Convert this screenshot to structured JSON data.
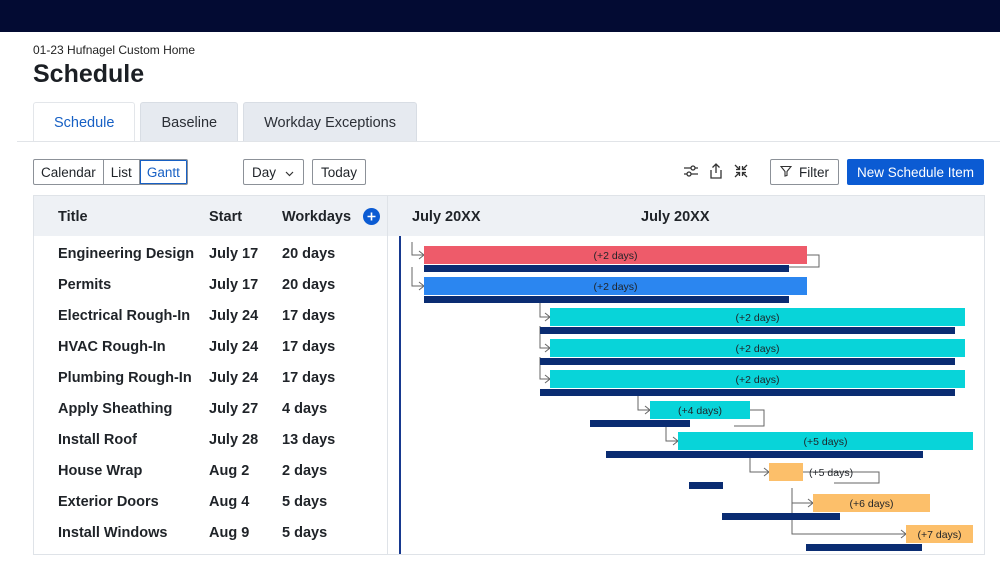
{
  "project": {
    "name": "01-23 Hufnagel Custom Home",
    "title": "Schedule"
  },
  "tabs": [
    {
      "label": "Schedule",
      "active": true
    },
    {
      "label": "Baseline",
      "active": false
    },
    {
      "label": "Workday Exceptions",
      "active": false
    }
  ],
  "toolbar": {
    "views": [
      {
        "label": "Calendar",
        "active": false
      },
      {
        "label": "List",
        "active": false
      },
      {
        "label": "Gantt",
        "active": true
      }
    ],
    "scale_select": {
      "value": "Day",
      "icon": "chevron-down-icon"
    },
    "today_label": "Today",
    "icons": [
      "settings-sliders-icon",
      "share-icon",
      "collapse-icon"
    ],
    "filter_label": "Filter",
    "new_item_label": "New Schedule Item"
  },
  "table": {
    "headers": {
      "title": "Title",
      "start": "Start",
      "workdays": "Workdays"
    },
    "rows": [
      {
        "title": "Engineering Design",
        "start": "July 17",
        "workdays": "20 days"
      },
      {
        "title": "Permits",
        "start": "July 17",
        "workdays": "20 days"
      },
      {
        "title": "Electrical Rough-In",
        "start": "July 24",
        "workdays": "17 days"
      },
      {
        "title": "HVAC Rough-In",
        "start": "July 24",
        "workdays": "17 days"
      },
      {
        "title": "Plumbing Rough-In",
        "start": "July 24",
        "workdays": "17 days"
      },
      {
        "title": "Apply Sheathing",
        "start": "July 27",
        "workdays": "4 days"
      },
      {
        "title": "Install Roof",
        "start": "July 28",
        "workdays": "13 days"
      },
      {
        "title": "House Wrap",
        "start": "Aug 2",
        "workdays": "2 days"
      },
      {
        "title": "Exterior Doors",
        "start": "Aug 4",
        "workdays": "5 days"
      },
      {
        "title": "Install Windows",
        "start": "Aug 9",
        "workdays": "5 days"
      }
    ]
  },
  "gantt": {
    "month_labels": [
      "July 20XX",
      "July 20XX"
    ],
    "colors": {
      "critical": "#ee5b6a",
      "primary": "#2b86f0",
      "standard": "#08d4d9",
      "late": "#fcbf6a",
      "baseline": "#0a2c72",
      "today": "#17398f",
      "connector": "#666666"
    },
    "bars": [
      {
        "task": "Engineering Design",
        "variance": "(+2 days)",
        "color": "critical"
      },
      {
        "task": "Permits",
        "variance": "(+2 days)",
        "color": "primary"
      },
      {
        "task": "Electrical Rough-In",
        "variance": "(+2 days)",
        "color": "standard"
      },
      {
        "task": "HVAC Rough-In",
        "variance": "(+2 days)",
        "color": "standard"
      },
      {
        "task": "Plumbing Rough-In",
        "variance": "(+2 days)",
        "color": "standard"
      },
      {
        "task": "Apply Sheathing",
        "variance": "(+4 days)",
        "color": "standard"
      },
      {
        "task": "Install Roof",
        "variance": "(+5 days)",
        "color": "standard"
      },
      {
        "task": "House Wrap",
        "variance": "(+5 days)",
        "color": "late"
      },
      {
        "task": "Exterior Doors",
        "variance": "(+6 days)",
        "color": "late"
      },
      {
        "task": "Install Windows",
        "variance": "(+7 days)",
        "color": "late"
      }
    ]
  }
}
